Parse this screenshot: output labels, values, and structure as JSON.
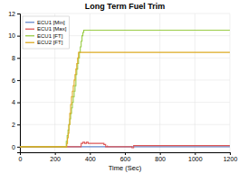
{
  "chart_data": {
    "type": "line",
    "title": "Long Term Fuel Trim",
    "x_label": "Time (Sec)",
    "xlim": [
      0,
      1200
    ],
    "ylim": [
      -0.5,
      12
    ],
    "xticks": [
      0,
      200,
      400,
      600,
      800,
      1000,
      1200
    ],
    "yticks": [
      0,
      2,
      4,
      6,
      8,
      10,
      12
    ],
    "grid": true,
    "legend": "upper left",
    "series": [
      {
        "name": "ECU1 [Min]",
        "color": "#6688cc",
        "type": "line",
        "x": [
          0,
          1200
        ],
        "values": [
          0,
          0
        ]
      },
      {
        "name": "ECU1 [Max]",
        "color": "#dd5555",
        "type": "step",
        "x": [
          0,
          350,
          350,
          360,
          360,
          370,
          370,
          380,
          380,
          390,
          390,
          480,
          480,
          490,
          490,
          500,
          500,
          640,
          640,
          650,
          650,
          1200
        ],
        "values": [
          0,
          0,
          0.3,
          0.3,
          0.4,
          0.4,
          0.3,
          0.3,
          0.4,
          0.4,
          0.3,
          0.3,
          0.2,
          0.2,
          0.0,
          0.1,
          0.0,
          0.0,
          -0.1,
          -0.1,
          0.1,
          0.1
        ]
      },
      {
        "name": "ECU1 [FT]",
        "color": "#99cc44",
        "type": "step",
        "x": [
          0,
          260,
          265,
          270,
          275,
          280,
          285,
          290,
          295,
          300,
          305,
          310,
          315,
          320,
          325,
          330,
          335,
          340,
          345,
          350,
          355,
          360,
          365,
          370,
          375,
          380,
          385,
          390,
          1200
        ],
        "values": [
          0,
          0,
          0.5,
          1.0,
          1.5,
          2.0,
          2.5,
          3.0,
          3.5,
          4.0,
          4.5,
          5.0,
          5.5,
          6.5,
          7.0,
          7.5,
          8.0,
          8.5,
          9.0,
          9.5,
          10.0,
          10.3,
          10.5,
          10.5,
          10.5,
          10.5,
          10.5,
          10.5,
          10.5
        ]
      },
      {
        "name": "ECU2 [FT]",
        "color": "#ddaa22",
        "type": "step",
        "x": [
          0,
          265,
          268,
          272,
          276,
          280,
          285,
          290,
          295,
          300,
          305,
          310,
          315,
          320,
          325,
          330,
          335,
          340,
          345,
          350,
          355,
          358,
          1200
        ],
        "values": [
          0,
          0,
          0.3,
          0.8,
          1.2,
          2.0,
          3.0,
          3.8,
          4.5,
          5.0,
          5.5,
          6.0,
          6.5,
          7.0,
          7.5,
          8.0,
          8.5,
          8.5,
          8.5,
          8.5,
          8.5,
          8.5,
          8.5
        ]
      }
    ]
  }
}
